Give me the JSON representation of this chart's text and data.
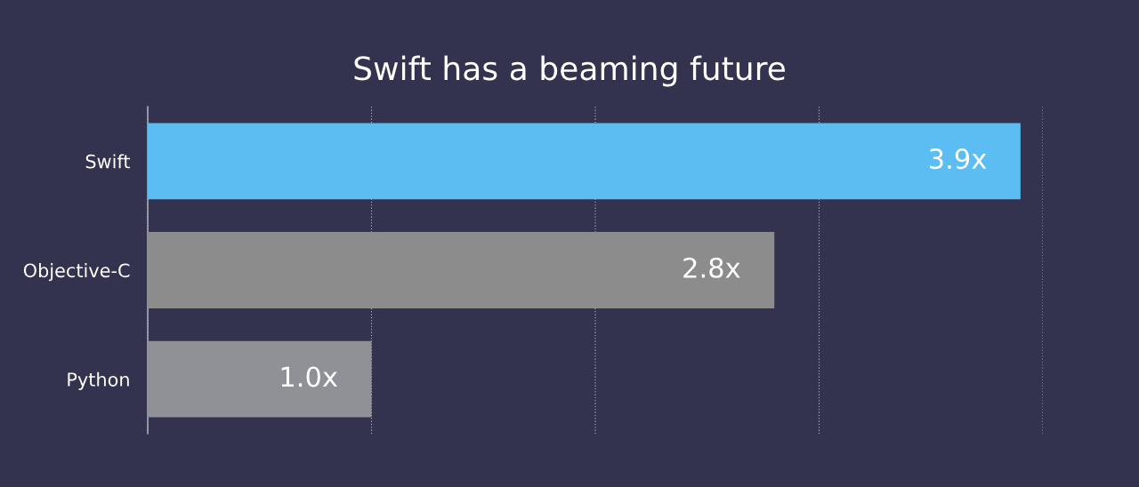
{
  "chart_data": {
    "type": "bar",
    "orientation": "horizontal",
    "title": "Swift has a beaming future",
    "categories": [
      "Swift",
      "Objective-C",
      "Python"
    ],
    "values": [
      3.9,
      2.8,
      1.0
    ],
    "colors": [
      "#5cbdf2",
      "#8c8c8c",
      "#8f9197"
    ],
    "value_labels": [
      "3.9x",
      "2.8x",
      "1.0x"
    ],
    "xlim": [
      0,
      4
    ],
    "xticks": [
      {
        "value": 0,
        "label": null
      },
      {
        "value": 1,
        "label": null
      },
      {
        "value": 2,
        "label": null
      },
      {
        "value": 3,
        "label": null
      },
      {
        "value": 4,
        "label": null
      }
    ],
    "grid": "x",
    "tick_labels": "y"
  }
}
